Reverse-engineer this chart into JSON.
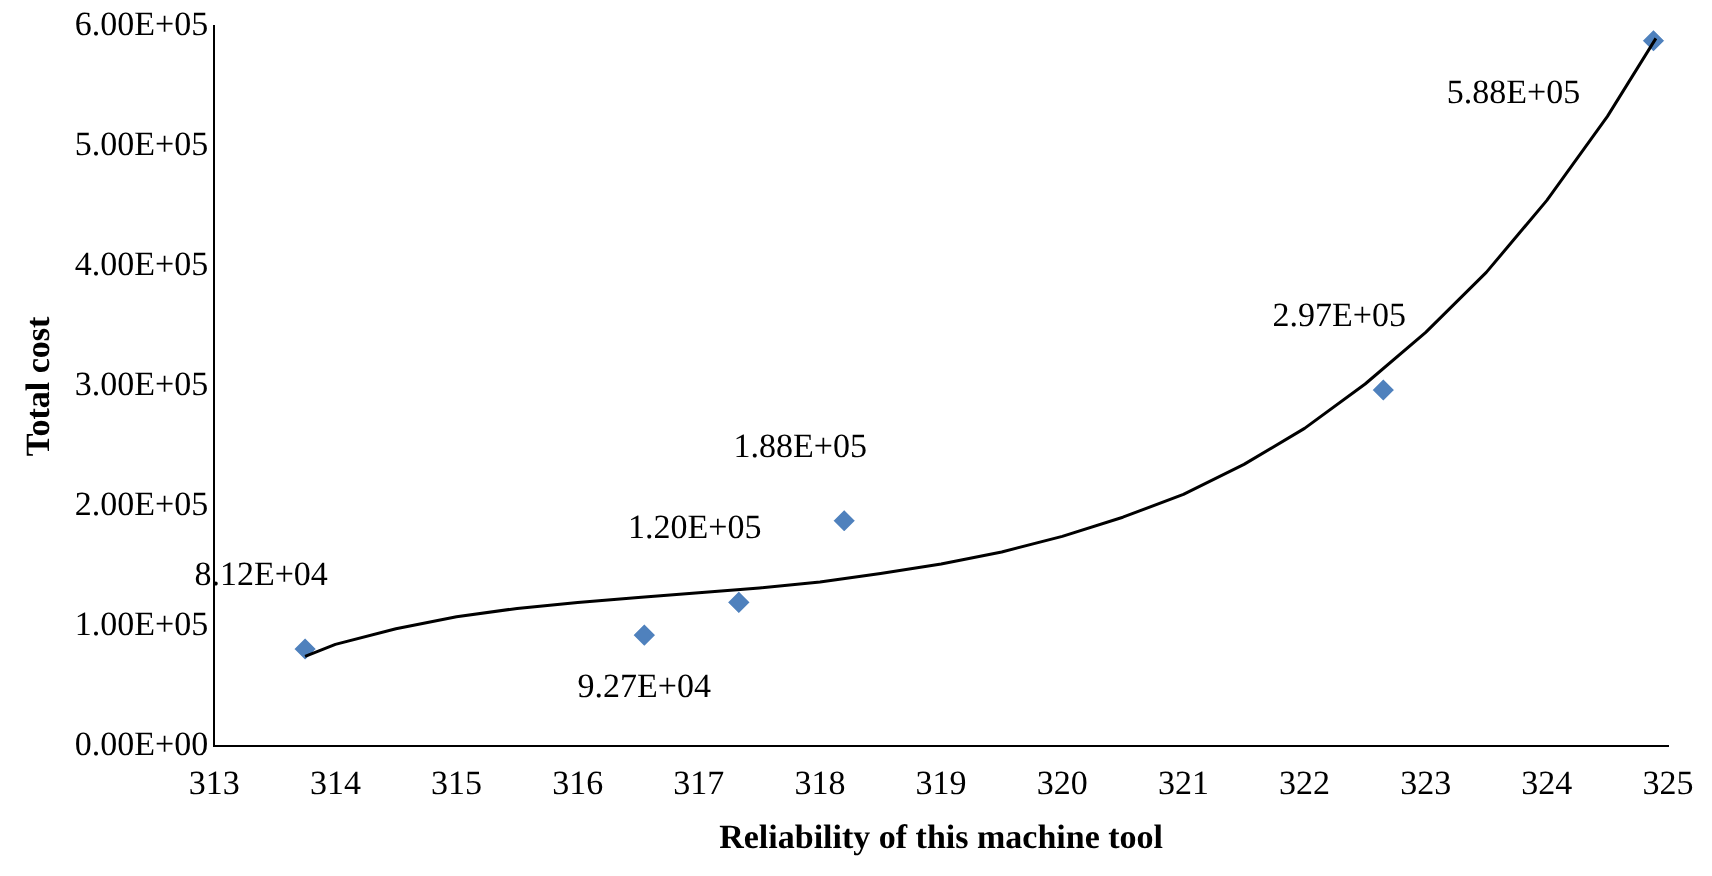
{
  "chart_data": {
    "type": "scatter",
    "xlabel": "Reliability of this machine tool",
    "ylabel": "Total cost",
    "xlim": [
      313,
      325
    ],
    "xticks": [
      313,
      314,
      315,
      316,
      317,
      318,
      319,
      320,
      321,
      322,
      323,
      324,
      325
    ],
    "ylim": [
      0,
      600000
    ],
    "yticks": [
      {
        "value": 0,
        "label": "0.00E+00"
      },
      {
        "value": 100000,
        "label": "1.00E+05"
      },
      {
        "value": 200000,
        "label": "2.00E+05"
      },
      {
        "value": 300000,
        "label": "3.00E+05"
      },
      {
        "value": 400000,
        "label": "4.00E+05"
      },
      {
        "value": 500000,
        "label": "5.00E+05"
      },
      {
        "value": 600000,
        "label": "6.00E+05"
      }
    ],
    "grid": false,
    "legend": false,
    "marker": "diamond",
    "series": [
      {
        "type": "line",
        "color": "#000000",
        "marker": "none",
        "line_style": "solid",
        "x": [
          313.75,
          314,
          314.5,
          315,
          315.5,
          316,
          316.5,
          317,
          317.5,
          318,
          318.5,
          319,
          319.5,
          320,
          320.5,
          321,
          321.5,
          322,
          322.5,
          323,
          323.5,
          324,
          324.5,
          324.9
        ],
        "values": [
          75000,
          85000,
          98000,
          108000,
          115000,
          120000,
          124000,
          128000,
          132000,
          137000,
          144000,
          152000,
          162000,
          175000,
          191000,
          210000,
          235000,
          265000,
          302000,
          345000,
          395000,
          455000,
          525000,
          590000
        ]
      },
      {
        "type": "scatter",
        "color": "#4f81bd",
        "x": [
          313.75,
          316.55,
          317.33,
          318.2,
          322.65,
          324.88
        ],
        "values": [
          81200,
          92700,
          120000,
          188000,
          297000,
          588000
        ],
        "value_labels": [
          "8.12E+04",
          "9.27E+04",
          "1.20E+05",
          "1.88E+05",
          "2.97E+05",
          "5.88E+05"
        ]
      }
    ]
  }
}
